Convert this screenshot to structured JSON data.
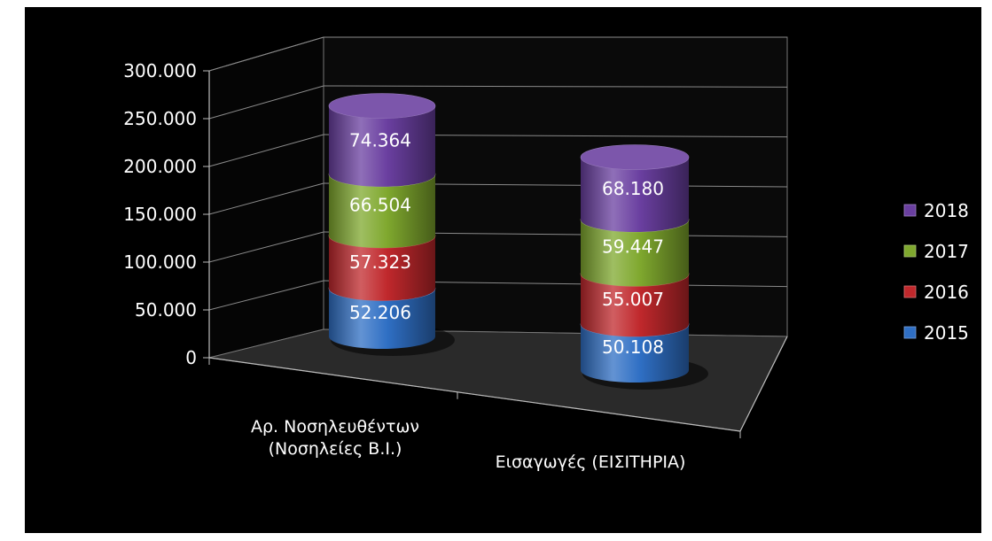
{
  "chart_data": {
    "type": "bar",
    "stacked": true,
    "style": "3d-cylinder",
    "title": "",
    "xlabel": "",
    "ylabel": "",
    "categories": [
      "Αρ. Νοσηλευθέντων (Νοσηλείες Β.Ι.)",
      "Εισαγωγές (ΕΙΣΙΤΗΡΙΑ)"
    ],
    "category_lines": [
      [
        "Αρ. Νοσηλευθέντων",
        "(Νοσηλείες Β.Ι.)"
      ],
      [
        "Εισαγωγές (ΕΙΣΙΤΗΡΙΑ)"
      ]
    ],
    "series": [
      {
        "name": "2015",
        "values": [
          52206,
          50108
        ],
        "labels": [
          "52.206",
          "50.108"
        ],
        "color": "#2f6fc4"
      },
      {
        "name": "2016",
        "values": [
          57323,
          55007
        ],
        "labels": [
          "57.323",
          "55.007"
        ],
        "color": "#c0282c"
      },
      {
        "name": "2017",
        "values": [
          66504,
          59447
        ],
        "labels": [
          "66.504",
          "59.447"
        ],
        "color": "#7fa82e"
      },
      {
        "name": "2018",
        "values": [
          74364,
          68180
        ],
        "labels": [
          "74.364",
          "68.180"
        ],
        "color": "#6a3fa0"
      }
    ],
    "ylim": [
      0,
      300000
    ],
    "yticks": [
      {
        "value": 0,
        "label": "0"
      },
      {
        "value": 50000,
        "label": "50.000"
      },
      {
        "value": 100000,
        "label": "100.000"
      },
      {
        "value": 150000,
        "label": "150.000"
      },
      {
        "value": 200000,
        "label": "200.000"
      },
      {
        "value": 250000,
        "label": "250.000"
      },
      {
        "value": 300000,
        "label": "300.000"
      }
    ],
    "grid": true,
    "legend_position": "right",
    "legend_order": [
      "2018",
      "2017",
      "2016",
      "2015"
    ],
    "background": "#000000",
    "text_color": "#ffffff"
  }
}
